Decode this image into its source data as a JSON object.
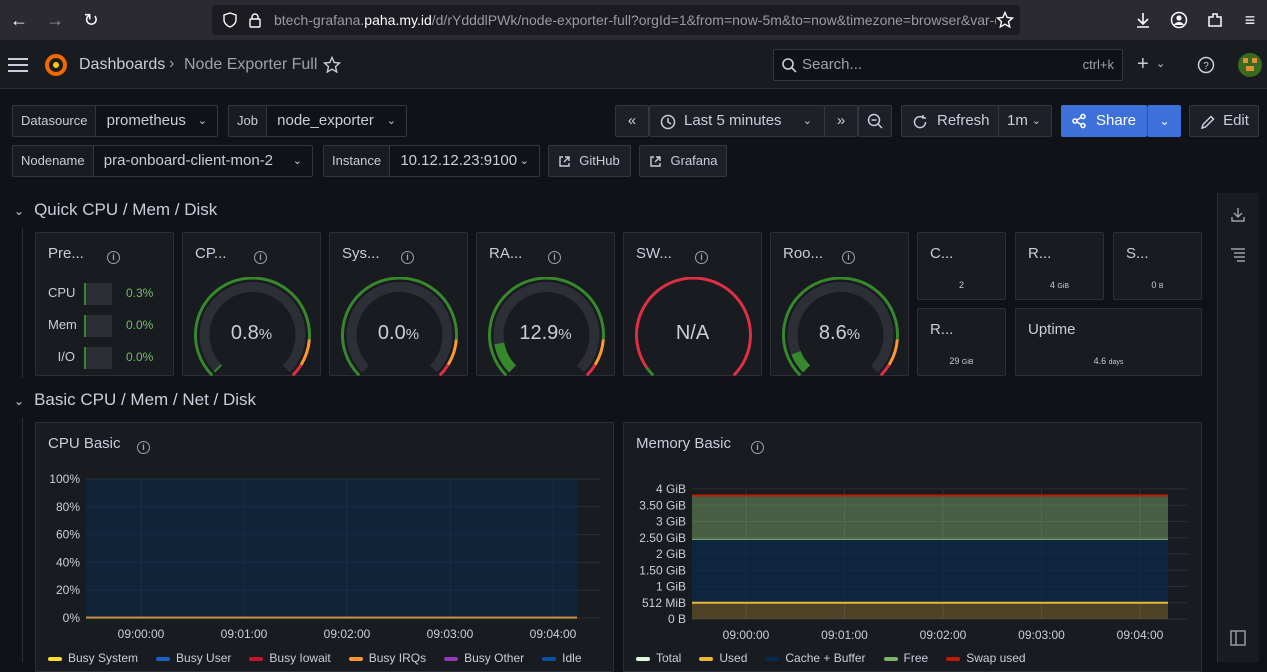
{
  "browser": {
    "url_prefix": "btech-grafana.",
    "url_host": "paha.my.id",
    "url_rest": "/d/rYdddlPWk/node-exporter-full?orgId=1&from=now-5m&to=now&timezone=browser&var-ds"
  },
  "topbar": {
    "breadcrumb_home": "Dashboards",
    "breadcrumb_sep": "›",
    "breadcrumb_current": "Node Exporter Full",
    "search_placeholder": "Search...",
    "search_shortcut": "ctrl+k"
  },
  "variables": {
    "datasource_label": "Datasource",
    "datasource_value": "prometheus",
    "job_label": "Job",
    "job_value": "node_exporter",
    "nodename_label": "Nodename",
    "nodename_value": "pra-onboard-client-mon-2",
    "instance_label": "Instance",
    "instance_value": "10.12.12.23:9100",
    "link_github": "GitHub",
    "link_grafana": "Grafana"
  },
  "controls": {
    "time_range": "Last 5 minutes",
    "refresh": "Refresh",
    "refresh_interval": "1m",
    "share": "Share",
    "edit": "Edit"
  },
  "sections": {
    "quick": "Quick CPU / Mem / Disk",
    "basic": "Basic CPU / Mem / Net / Disk"
  },
  "quick": {
    "pressure_title": "Pre...",
    "pressure_rows": [
      {
        "label": "CPU",
        "value": "0.3%"
      },
      {
        "label": "Mem",
        "value": "0.0%"
      },
      {
        "label": "I/O",
        "value": "0.0%"
      }
    ],
    "gauges": [
      {
        "title": "CP...",
        "value": "0.8",
        "unit": "%",
        "percent": 0.8
      },
      {
        "title": "Sys...",
        "value": "0.0",
        "unit": "%",
        "percent": 0.0
      },
      {
        "title": "RA...",
        "value": "12.9",
        "unit": "%",
        "percent": 12.9
      },
      {
        "title": "SW...",
        "value": "N/A",
        "unit": "",
        "percent": null
      },
      {
        "title": "Roo...",
        "value": "8.6",
        "unit": "%",
        "percent": 8.6
      }
    ],
    "stats": [
      {
        "title": "C...",
        "value": "2",
        "unit": ""
      },
      {
        "title": "R...",
        "value": "4",
        "unit": "GiB"
      },
      {
        "title": "S...",
        "value": "0",
        "unit": "B"
      },
      {
        "title": "R...",
        "value": "29",
        "unit": "GiB"
      },
      {
        "title": "Uptime",
        "value": "4.6",
        "unit": "days"
      }
    ]
  },
  "cpu_panel": {
    "title": "CPU Basic",
    "legend": [
      {
        "name": "Busy System",
        "color": "#fade2a"
      },
      {
        "name": "Busy User",
        "color": "#1f60c4"
      },
      {
        "name": "Busy Iowait",
        "color": "#c4162a"
      },
      {
        "name": "Busy IRQs",
        "color": "#ff9830"
      },
      {
        "name": "Busy Other",
        "color": "#8f3bb8"
      },
      {
        "name": "Idle",
        "color": "#0a50a1"
      }
    ]
  },
  "mem_panel": {
    "title": "Memory Basic",
    "legend": [
      {
        "name": "Total",
        "color": "#e0f9d7"
      },
      {
        "name": "Used",
        "color": "#eab839"
      },
      {
        "name": "Cache + Buffer",
        "color": "#052b51"
      },
      {
        "name": "Free",
        "color": "#7eb26d"
      },
      {
        "name": "Swap used",
        "color": "#bf1b00"
      }
    ]
  },
  "chart_data": [
    {
      "type": "area",
      "title": "CPU Basic",
      "x": [
        "09:00:00",
        "09:01:00",
        "09:02:00",
        "09:03:00",
        "09:04:00"
      ],
      "yticks": [
        "100%",
        "80%",
        "60%",
        "40%",
        "20%",
        "0%"
      ],
      "ylim": [
        0,
        100
      ],
      "series": [
        {
          "name": "Busy System",
          "values": [
            0.4,
            0.4,
            0.4,
            0.4,
            0.4
          ]
        },
        {
          "name": "Busy User",
          "values": [
            0.4,
            0.4,
            0.4,
            0.4,
            0.4
          ]
        },
        {
          "name": "Busy Iowait",
          "values": [
            0,
            0,
            0,
            0,
            0
          ]
        },
        {
          "name": "Busy IRQs",
          "values": [
            0,
            0,
            0,
            0,
            0
          ]
        },
        {
          "name": "Busy Other",
          "values": [
            0,
            0,
            0,
            0,
            0
          ]
        },
        {
          "name": "Idle",
          "values": [
            99.2,
            99.2,
            99.2,
            99.2,
            99.2
          ]
        }
      ]
    },
    {
      "type": "area",
      "title": "Memory Basic",
      "x": [
        "09:00:00",
        "09:01:00",
        "09:02:00",
        "09:03:00",
        "09:04:00"
      ],
      "yticks": [
        "4 GiB",
        "3.50 GiB",
        "3 GiB",
        "2.50 GiB",
        "2 GiB",
        "1.50 GiB",
        "1 GiB",
        "512 MiB",
        "0 B"
      ],
      "ylim": [
        0,
        4
      ],
      "series": [
        {
          "name": "Total",
          "values": [
            3.8,
            3.8,
            3.8,
            3.8,
            3.8
          ]
        },
        {
          "name": "Used",
          "values": [
            0.5,
            0.5,
            0.5,
            0.5,
            0.5
          ]
        },
        {
          "name": "Cache + Buffer",
          "values": [
            1.95,
            1.95,
            1.95,
            1.95,
            1.95
          ]
        },
        {
          "name": "Free",
          "values": [
            1.35,
            1.35,
            1.35,
            1.35,
            1.35
          ]
        },
        {
          "name": "Swap used",
          "values": [
            0,
            0,
            0,
            0,
            0
          ]
        }
      ]
    }
  ]
}
